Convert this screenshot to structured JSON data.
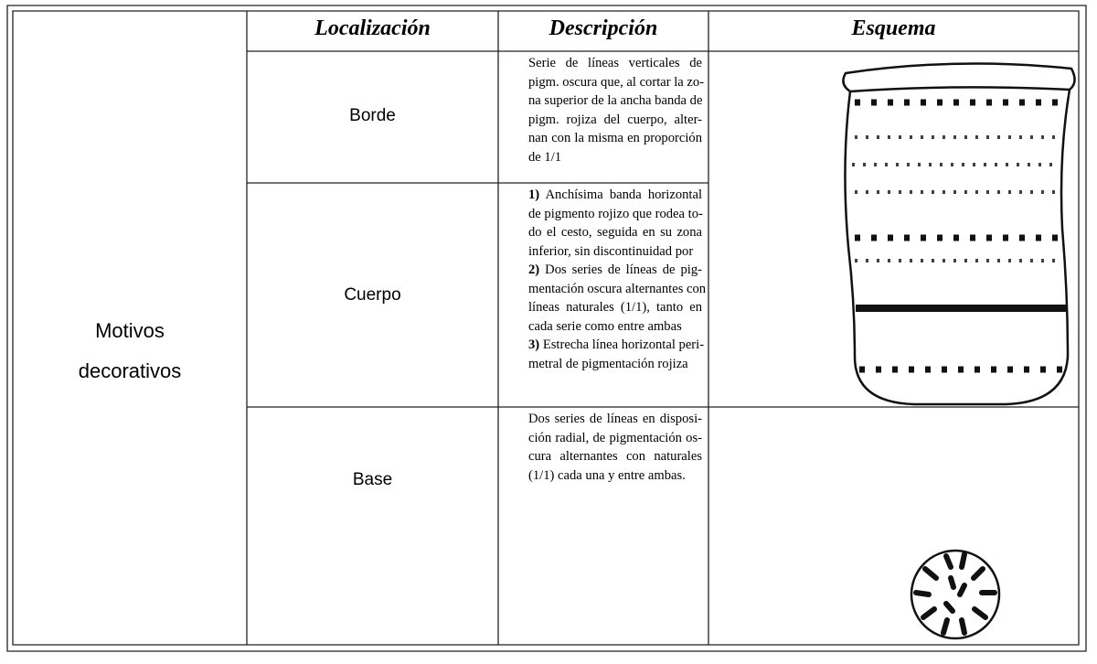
{
  "table": {
    "header": [
      "Localización",
      "Descripción",
      "Esquema"
    ],
    "group": [
      "Motivos",
      "decorativos"
    ],
    "rows": [
      {
        "location": "Borde",
        "description": [
          {
            "marker": null,
            "lines": [
              "Serie de líneas verticales de",
              "pigm. oscura que, al cortar la zo-",
              "na superior de la ancha banda de",
              "pigm. rojiza del cuerpo, alter-",
              "nan con la misma en proporción",
              "de 1/1"
            ]
          }
        ]
      },
      {
        "location": "Cuerpo",
        "description": [
          {
            "marker": "1)",
            "lines": [
              "Anchísima banda horizontal",
              "de pigmento rojizo que rodea to-",
              "do el cesto, seguida en su zona",
              "inferior, sin discontinuidad por"
            ]
          },
          {
            "marker": "2)",
            "lines": [
              "Dos series de líneas de pig-",
              "mentación oscura alternantes con",
              "líneas naturales (1/1), tanto en",
              "cada serie como entre ambas"
            ]
          },
          {
            "marker": "3)",
            "lines": [
              "Estrecha línea horizontal peri-",
              "metral de pigmentación rojiza"
            ]
          }
        ]
      },
      {
        "location": "Base",
        "description": [
          {
            "marker": null,
            "lines": [
              "Dos series de líneas en disposi-",
              "ción radial, de pigmentación os-",
              "cura alternantes con naturales",
              "(1/1) cada una y entre ambas."
            ]
          }
        ]
      }
    ]
  }
}
